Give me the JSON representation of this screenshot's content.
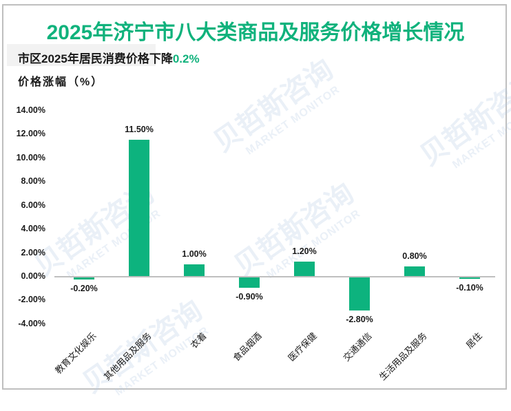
{
  "header": {
    "title": "2025年济宁市八大类商品及服务价格增长情况",
    "subtitle_prefix": "市区2025年居民消费价格下降",
    "subtitle_highlight": "0.2%",
    "y_axis_label": "价格涨幅（%）"
  },
  "watermark": {
    "cn": "贝哲斯咨询",
    "en": "MARKET MONITOR"
  },
  "colors": {
    "title": "#10b27c",
    "bar": "#0db37e",
    "axis": "#bfbfbf",
    "highlight": "#10b27c"
  },
  "y_ticks": [
    "14.00%",
    "12.00%",
    "10.00%",
    "8.00%",
    "6.00%",
    "4.00%",
    "2.00%",
    "0.00%",
    "-2.00%",
    "-4.00%"
  ],
  "bars": [
    {
      "category": "教育文化娱乐",
      "value": -0.2,
      "label": "-0.20%"
    },
    {
      "category": "其他用品及服务",
      "value": 11.5,
      "label": "11.50%"
    },
    {
      "category": "衣着",
      "value": 1.0,
      "label": "1.00%"
    },
    {
      "category": "食品烟酒",
      "value": -0.9,
      "label": "-0.90%"
    },
    {
      "category": "医疗保健",
      "value": 1.2,
      "label": "1.20%"
    },
    {
      "category": "交通通信",
      "value": -2.8,
      "label": "-2.80%"
    },
    {
      "category": "生活用品及服务",
      "value": 0.8,
      "label": "0.80%"
    },
    {
      "category": "居住",
      "value": -0.1,
      "label": "-0.10%"
    }
  ],
  "chart_data": {
    "type": "bar",
    "title": "2025年济宁市八大类商品及服务价格增长情况",
    "subtitle": "市区2025年居民消费价格下降0.2%",
    "xlabel": "",
    "ylabel": "价格涨幅（%）",
    "categories": [
      "教育文化娱乐",
      "其他用品及服务",
      "衣着",
      "食品烟酒",
      "医疗保健",
      "交通通信",
      "生活用品及服务",
      "居住"
    ],
    "values": [
      -0.2,
      11.5,
      1.0,
      -0.9,
      1.2,
      -2.8,
      0.8,
      -0.1
    ],
    "data_labels": [
      "-0.20%",
      "11.50%",
      "1.00%",
      "-0.90%",
      "1.20%",
      "-2.80%",
      "0.80%",
      "-0.10%"
    ],
    "ylim": [
      -4,
      14
    ],
    "y_tick_step": 2,
    "y_tick_format": "0.00%",
    "grid": false,
    "legend": null
  }
}
